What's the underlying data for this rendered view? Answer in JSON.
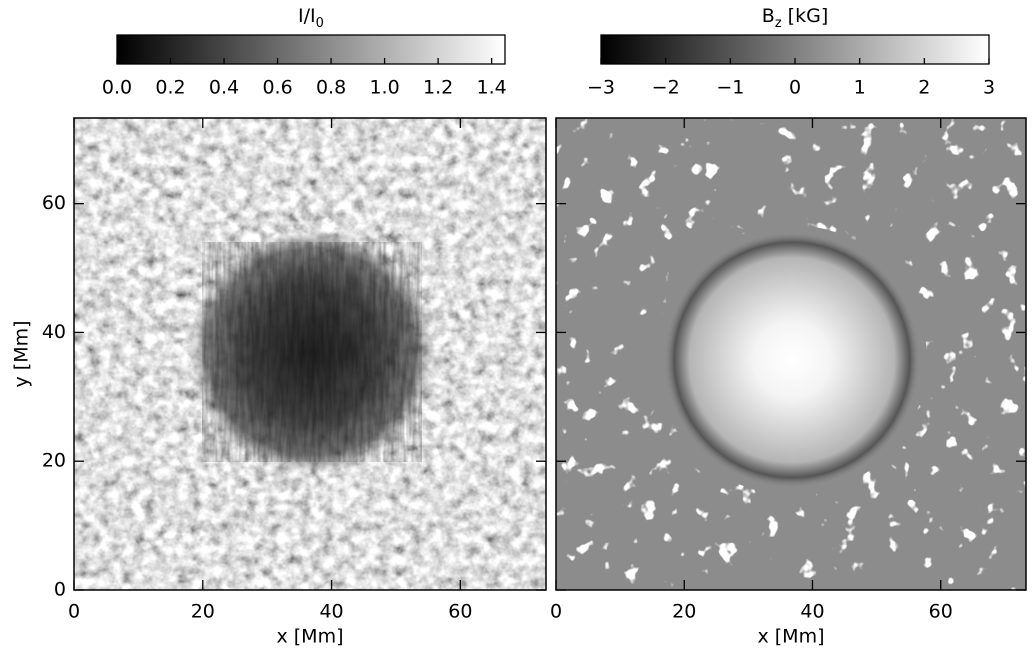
{
  "chart_data": [
    {
      "type": "image",
      "cbar_label": "I/I",
      "cbar_label_sub": "0",
      "clim": [
        0,
        1.45
      ],
      "cticks": [
        {
          "value": 0,
          "label": "0.0"
        },
        0.2,
        0.4,
        0.6,
        0.8,
        {
          "value": 1,
          "label": "1.0"
        },
        1.2,
        1.4
      ],
      "xlabel": "x [Mm]",
      "ylabel": "y [Mm]",
      "xlim": [
        0,
        73.3
      ],
      "ylim": [
        0,
        73.3
      ],
      "xticks": [
        0,
        20,
        40,
        60
      ],
      "yticks": [
        0,
        20,
        40,
        60
      ]
    },
    {
      "type": "image",
      "cbar_label": "B",
      "cbar_label_sub": "z",
      "cbar_label_rest": " [kG]",
      "clim": [
        -3,
        3
      ],
      "cticks": [
        {
          "value": -3,
          "label": "−3"
        },
        {
          "value": -2,
          "label": "−2"
        },
        {
          "value": -1,
          "label": "−1"
        },
        0,
        1,
        2,
        3
      ],
      "xlabel": "x [Mm]",
      "xlim": [
        0,
        73.3
      ],
      "ylim": [
        0,
        73.3
      ],
      "xticks": [
        0,
        20,
        40,
        60
      ],
      "yticks": [
        0,
        20,
        40,
        60
      ],
      "ytick_labels": false
    }
  ]
}
